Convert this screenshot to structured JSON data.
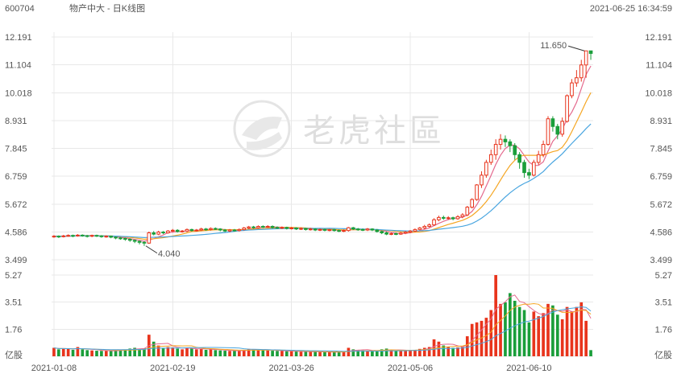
{
  "header": {
    "code": "600704",
    "name": "物产中大 - 日K线图",
    "datetime": "2021-06-25 16:34:59"
  },
  "watermark": {
    "text": "老虎社區",
    "icon": "tiger-logo-icon"
  },
  "colors": {
    "up": "#e8341c",
    "down": "#1a9e3a",
    "ma5": "#e46a8e",
    "ma10": "#f5a623",
    "ma20": "#4aa6e0",
    "grid": "#e8e8e8",
    "text": "#555555"
  },
  "chart_data": {
    "type": "candlestick",
    "price_axis": {
      "ticks": [
        "12.191",
        "11.104",
        "10.018",
        "8.931",
        "7.845",
        "6.759",
        "5.672",
        "4.586",
        "3.499"
      ],
      "range": [
        3.499,
        12.191
      ]
    },
    "volume_axis": {
      "ticks": [
        "5.27",
        "3.51",
        "1.76"
      ],
      "unit": "亿股",
      "range": [
        0,
        5.27
      ]
    },
    "x_labels": [
      "2021-01-08",
      "2021-02-19",
      "2021-03-26",
      "2021-05-06",
      "2021-06-10"
    ],
    "x_label_index": [
      0,
      25,
      50,
      75,
      100
    ],
    "annotations": {
      "max_label": "11.650",
      "min_label": "4.040"
    },
    "candles": [
      [
        4.4,
        4.42,
        4.46,
        4.36,
        0.55
      ],
      [
        4.42,
        4.4,
        4.45,
        4.35,
        0.45
      ],
      [
        4.4,
        4.43,
        4.47,
        4.37,
        0.5
      ],
      [
        4.43,
        4.45,
        4.49,
        4.4,
        0.48
      ],
      [
        4.45,
        4.43,
        4.48,
        4.38,
        0.42
      ],
      [
        4.43,
        4.46,
        4.5,
        4.4,
        0.6
      ],
      [
        4.46,
        4.44,
        4.49,
        4.4,
        0.45
      ],
      [
        4.44,
        4.42,
        4.47,
        4.37,
        0.4
      ],
      [
        4.42,
        4.45,
        4.48,
        4.38,
        0.38
      ],
      [
        4.45,
        4.43,
        4.48,
        4.39,
        0.36
      ],
      [
        4.43,
        4.4,
        4.46,
        4.36,
        0.35
      ],
      [
        4.4,
        4.42,
        4.45,
        4.36,
        0.34
      ],
      [
        4.42,
        4.38,
        4.44,
        4.34,
        0.36
      ],
      [
        4.38,
        4.35,
        4.41,
        4.3,
        0.4
      ],
      [
        4.35,
        4.33,
        4.38,
        4.28,
        0.42
      ],
      [
        4.33,
        4.3,
        4.36,
        4.24,
        0.45
      ],
      [
        4.3,
        4.26,
        4.33,
        4.2,
        0.5
      ],
      [
        4.26,
        4.22,
        4.29,
        4.15,
        0.55
      ],
      [
        4.22,
        4.18,
        4.25,
        4.1,
        0.48
      ],
      [
        4.18,
        4.15,
        4.22,
        4.04,
        0.52
      ],
      [
        4.15,
        4.55,
        4.6,
        4.12,
        1.4
      ],
      [
        4.55,
        4.5,
        4.62,
        4.45,
        0.95
      ],
      [
        4.5,
        4.58,
        4.63,
        4.46,
        0.7
      ],
      [
        4.58,
        4.55,
        4.62,
        4.5,
        0.55
      ],
      [
        4.55,
        4.62,
        4.66,
        4.52,
        0.6
      ],
      [
        4.62,
        4.65,
        4.7,
        4.58,
        0.58
      ],
      [
        4.65,
        4.6,
        4.69,
        4.56,
        0.5
      ],
      [
        4.6,
        4.62,
        4.66,
        4.56,
        0.45
      ],
      [
        4.62,
        4.68,
        4.72,
        4.58,
        0.55
      ],
      [
        4.68,
        4.64,
        4.71,
        4.6,
        0.5
      ],
      [
        4.64,
        4.66,
        4.7,
        4.6,
        0.45
      ],
      [
        4.66,
        4.7,
        4.75,
        4.62,
        0.48
      ],
      [
        4.7,
        4.68,
        4.74,
        4.63,
        0.42
      ],
      [
        4.68,
        4.72,
        4.76,
        4.64,
        0.45
      ],
      [
        4.72,
        4.7,
        4.76,
        4.66,
        0.4
      ],
      [
        4.7,
        4.66,
        4.73,
        4.61,
        0.38
      ],
      [
        4.66,
        4.62,
        4.7,
        4.58,
        0.36
      ],
      [
        4.62,
        4.66,
        4.7,
        4.58,
        0.35
      ],
      [
        4.66,
        4.64,
        4.7,
        4.6,
        0.34
      ],
      [
        4.64,
        4.68,
        4.72,
        4.6,
        0.36
      ],
      [
        4.68,
        4.74,
        4.78,
        4.64,
        0.42
      ],
      [
        4.74,
        4.78,
        4.82,
        4.7,
        0.48
      ],
      [
        4.78,
        4.75,
        4.82,
        4.71,
        0.45
      ],
      [
        4.75,
        4.8,
        4.84,
        4.72,
        0.42
      ],
      [
        4.8,
        4.78,
        4.84,
        4.74,
        0.4
      ],
      [
        4.78,
        4.8,
        4.85,
        4.75,
        0.38
      ],
      [
        4.8,
        4.76,
        4.84,
        4.72,
        0.36
      ],
      [
        4.76,
        4.74,
        4.8,
        4.7,
        0.35
      ],
      [
        4.74,
        4.76,
        4.8,
        4.7,
        0.34
      ],
      [
        4.76,
        4.72,
        4.79,
        4.68,
        0.33
      ],
      [
        4.72,
        4.74,
        4.78,
        4.68,
        0.32
      ],
      [
        4.74,
        4.7,
        4.77,
        4.66,
        0.31
      ],
      [
        4.7,
        4.72,
        4.76,
        4.66,
        0.3
      ],
      [
        4.72,
        4.68,
        4.75,
        4.64,
        0.3
      ],
      [
        4.68,
        4.7,
        4.74,
        4.64,
        0.29
      ],
      [
        4.7,
        4.66,
        4.73,
        4.62,
        0.29
      ],
      [
        4.66,
        4.68,
        4.72,
        4.62,
        0.28
      ],
      [
        4.68,
        4.65,
        4.71,
        4.61,
        0.28
      ],
      [
        4.65,
        4.67,
        4.7,
        4.61,
        0.27
      ],
      [
        4.67,
        4.64,
        4.7,
        4.6,
        0.27
      ],
      [
        4.64,
        4.62,
        4.68,
        4.58,
        0.28
      ],
      [
        4.62,
        4.64,
        4.68,
        4.58,
        0.3
      ],
      [
        4.64,
        4.75,
        4.78,
        4.6,
        0.55
      ],
      [
        4.75,
        4.7,
        4.78,
        4.66,
        0.45
      ],
      [
        4.7,
        4.68,
        4.74,
        4.63,
        0.4
      ],
      [
        4.68,
        4.66,
        4.72,
        4.62,
        0.38
      ],
      [
        4.66,
        4.7,
        4.74,
        4.62,
        0.36
      ],
      [
        4.7,
        4.66,
        4.73,
        4.62,
        0.34
      ],
      [
        4.66,
        4.6,
        4.7,
        4.56,
        0.36
      ],
      [
        4.6,
        4.55,
        4.64,
        4.5,
        0.45
      ],
      [
        4.55,
        4.5,
        4.6,
        4.46,
        0.5
      ],
      [
        4.5,
        4.52,
        4.56,
        4.46,
        0.4
      ],
      [
        4.52,
        4.5,
        4.56,
        4.46,
        0.36
      ],
      [
        4.5,
        4.54,
        4.58,
        4.47,
        0.35
      ],
      [
        4.54,
        4.58,
        4.62,
        4.5,
        0.38
      ],
      [
        4.58,
        4.62,
        4.66,
        4.54,
        0.4
      ],
      [
        4.62,
        4.68,
        4.72,
        4.58,
        0.42
      ],
      [
        4.68,
        4.74,
        4.78,
        4.64,
        0.48
      ],
      [
        4.74,
        4.8,
        4.86,
        4.7,
        0.55
      ],
      [
        4.8,
        4.86,
        4.92,
        4.76,
        0.6
      ],
      [
        4.86,
        5.06,
        5.12,
        4.82,
        1.1
      ],
      [
        5.06,
        5.15,
        5.22,
        5.0,
        0.95
      ],
      [
        5.15,
        5.12,
        5.22,
        5.06,
        0.7
      ],
      [
        5.12,
        5.14,
        5.2,
        5.06,
        0.6
      ],
      [
        5.14,
        5.1,
        5.18,
        5.04,
        0.55
      ],
      [
        5.1,
        5.18,
        5.24,
        5.06,
        0.58
      ],
      [
        5.18,
        5.25,
        5.32,
        5.12,
        0.6
      ],
      [
        5.25,
        5.55,
        5.6,
        5.2,
        1.3
      ],
      [
        5.55,
        5.85,
        5.9,
        5.5,
        2.1
      ],
      [
        5.85,
        6.42,
        6.45,
        5.8,
        2.2
      ],
      [
        6.42,
        6.8,
        6.95,
        6.3,
        2.3
      ],
      [
        6.8,
        7.3,
        7.4,
        6.7,
        2.5
      ],
      [
        7.3,
        7.6,
        7.8,
        7.2,
        3.0
      ],
      [
        7.6,
        8.0,
        8.2,
        7.4,
        5.27
      ],
      [
        8.0,
        8.2,
        8.4,
        7.8,
        3.4
      ],
      [
        8.2,
        8.1,
        8.35,
        7.9,
        3.5
      ],
      [
        8.1,
        7.95,
        8.2,
        7.7,
        4.1
      ],
      [
        7.95,
        7.6,
        8.05,
        7.4,
        3.6
      ],
      [
        7.6,
        7.3,
        7.7,
        7.05,
        3.2
      ],
      [
        7.3,
        6.9,
        7.4,
        6.7,
        3.0
      ],
      [
        6.9,
        6.8,
        7.05,
        6.65,
        2.2
      ],
      [
        6.8,
        7.3,
        7.4,
        6.75,
        2.9
      ],
      [
        7.3,
        7.6,
        7.75,
        7.2,
        2.6
      ],
      [
        7.6,
        8.0,
        8.15,
        7.5,
        2.8
      ],
      [
        8.0,
        9.0,
        9.1,
        7.95,
        3.4
      ],
      [
        9.0,
        8.7,
        9.1,
        8.5,
        3.3
      ],
      [
        8.7,
        8.4,
        8.8,
        8.2,
        2.7
      ],
      [
        8.4,
        8.9,
        9.05,
        8.3,
        2.4
      ],
      [
        8.9,
        9.9,
        9.95,
        8.85,
        3.2
      ],
      [
        9.9,
        10.4,
        10.55,
        9.8,
        2.9
      ],
      [
        10.4,
        10.6,
        10.9,
        10.25,
        3.2
      ],
      [
        10.6,
        11.1,
        11.3,
        10.45,
        3.5
      ],
      [
        11.1,
        11.65,
        11.65,
        10.6,
        2.3
      ],
      [
        11.65,
        11.55,
        11.65,
        11.3,
        0.4
      ]
    ]
  }
}
